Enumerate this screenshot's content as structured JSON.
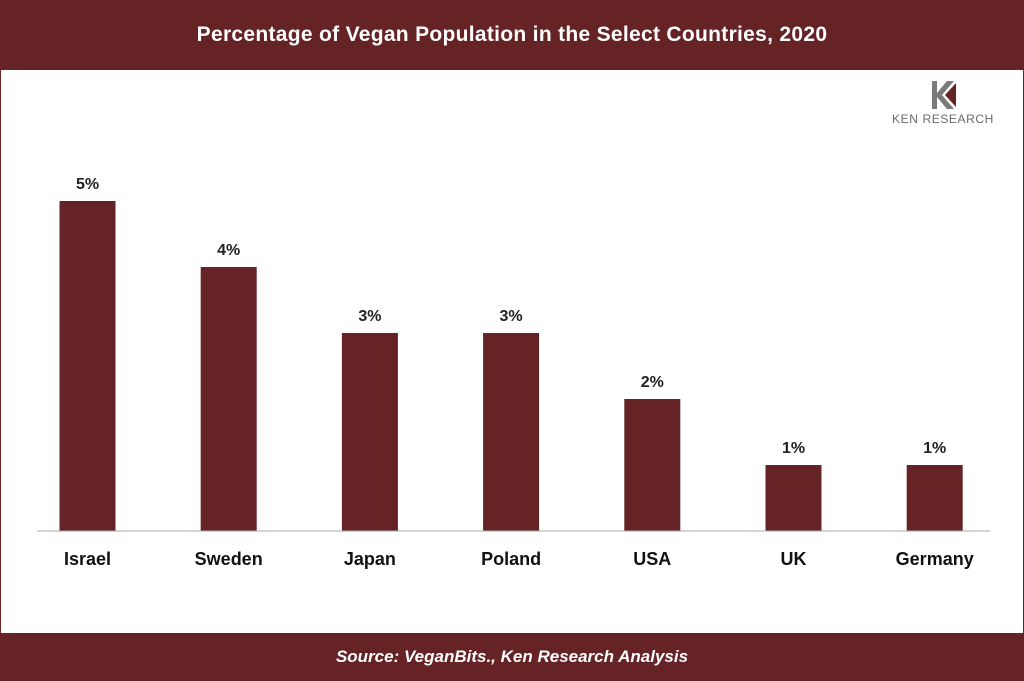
{
  "title": "Percentage of Vegan Population in the Select Countries, 2020",
  "source": "Source: VeganBits., Ken Research Analysis",
  "logo": {
    "text": "KEN RESEARCH",
    "icon": "ken-research-logo-icon"
  },
  "colors": {
    "bar": "#652325",
    "header": "#652325",
    "footer": "#652325"
  },
  "chart_data": {
    "type": "bar",
    "categories": [
      "Israel",
      "Sweden",
      "Japan",
      "Poland",
      "USA",
      "UK",
      "Germany"
    ],
    "values": [
      5,
      4,
      3,
      3,
      2,
      1,
      1
    ],
    "data_labels": [
      "5%",
      "4%",
      "3%",
      "3%",
      "2%",
      "1%",
      "1%"
    ],
    "unit": "%",
    "ylim": [
      0,
      5
    ],
    "grid": false,
    "legend": "none"
  }
}
